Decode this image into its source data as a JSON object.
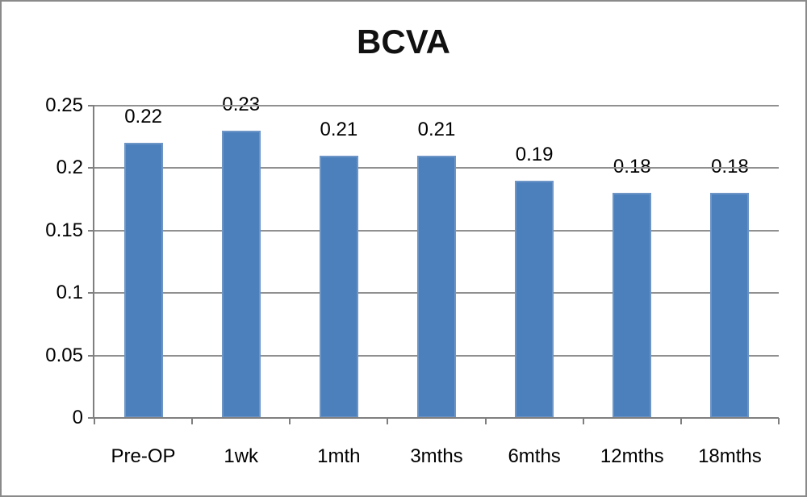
{
  "chart_data": {
    "type": "bar",
    "title": "BCVA",
    "categories": [
      "Pre-OP",
      "1wk",
      "1mth",
      "3mths",
      "6mths",
      "12mths",
      "18mths"
    ],
    "values": [
      0.22,
      0.23,
      0.21,
      0.21,
      0.19,
      0.18,
      0.18
    ],
    "value_labels": [
      "0.22",
      "0.23",
      "0.21",
      "0.21",
      "0.19",
      "0.18",
      "0.18"
    ],
    "xlabel": "",
    "ylabel": "",
    "ylim": [
      0,
      0.25
    ],
    "y_ticks": [
      "0.25",
      "0.2",
      "0.15",
      "0.1",
      "0.05",
      "0"
    ],
    "grid": true,
    "legend": false,
    "colors": {
      "bar_fill": "#4c80bd",
      "bar_border": "#6d95c6",
      "gridline": "#909090",
      "axis": "#7f7f7f",
      "frame_border": "#8a8a8a",
      "text": "#000000",
      "background": "#ffffff"
    }
  }
}
